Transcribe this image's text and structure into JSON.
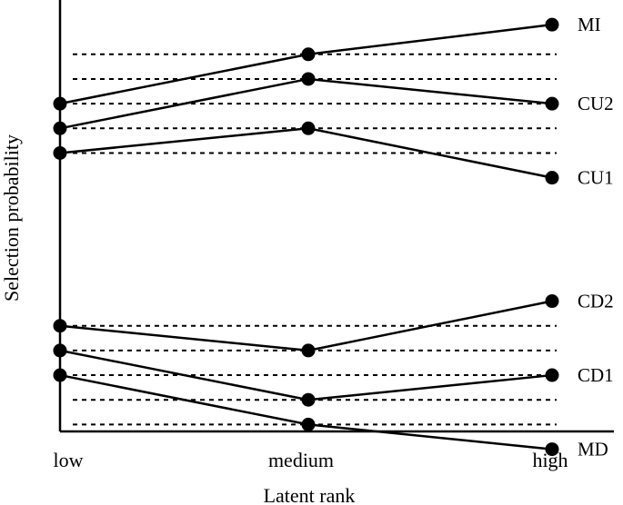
{
  "chart_data": {
    "type": "line",
    "title": "",
    "xlabel": "Latent rank",
    "ylabel": "Selection probability",
    "categories": [
      "low",
      "medium",
      "high"
    ],
    "ylim": [
      0,
      1
    ],
    "y_ticks_shown": false,
    "grid": false,
    "legend": "none (series labeled at right end of each line)",
    "series": [
      {
        "name": "MI",
        "values": [
          0.79,
          0.89,
          0.95
        ]
      },
      {
        "name": "CU2",
        "values": [
          0.74,
          0.84,
          0.79
        ]
      },
      {
        "name": "CU1",
        "values": [
          0.69,
          0.74,
          0.64
        ]
      },
      {
        "name": "CD2",
        "values": [
          0.34,
          0.29,
          0.39
        ]
      },
      {
        "name": "CD1",
        "values": [
          0.29,
          0.19,
          0.24
        ]
      },
      {
        "name": "MD",
        "values": [
          0.24,
          0.14,
          0.09
        ]
      }
    ],
    "reference_lines": [
      0.89,
      0.84,
      0.79,
      0.74,
      0.69,
      0.34,
      0.29,
      0.24,
      0.19,
      0.14
    ]
  },
  "colors": {
    "line": "#000000",
    "marker": "#000000",
    "reference": "#000000"
  }
}
